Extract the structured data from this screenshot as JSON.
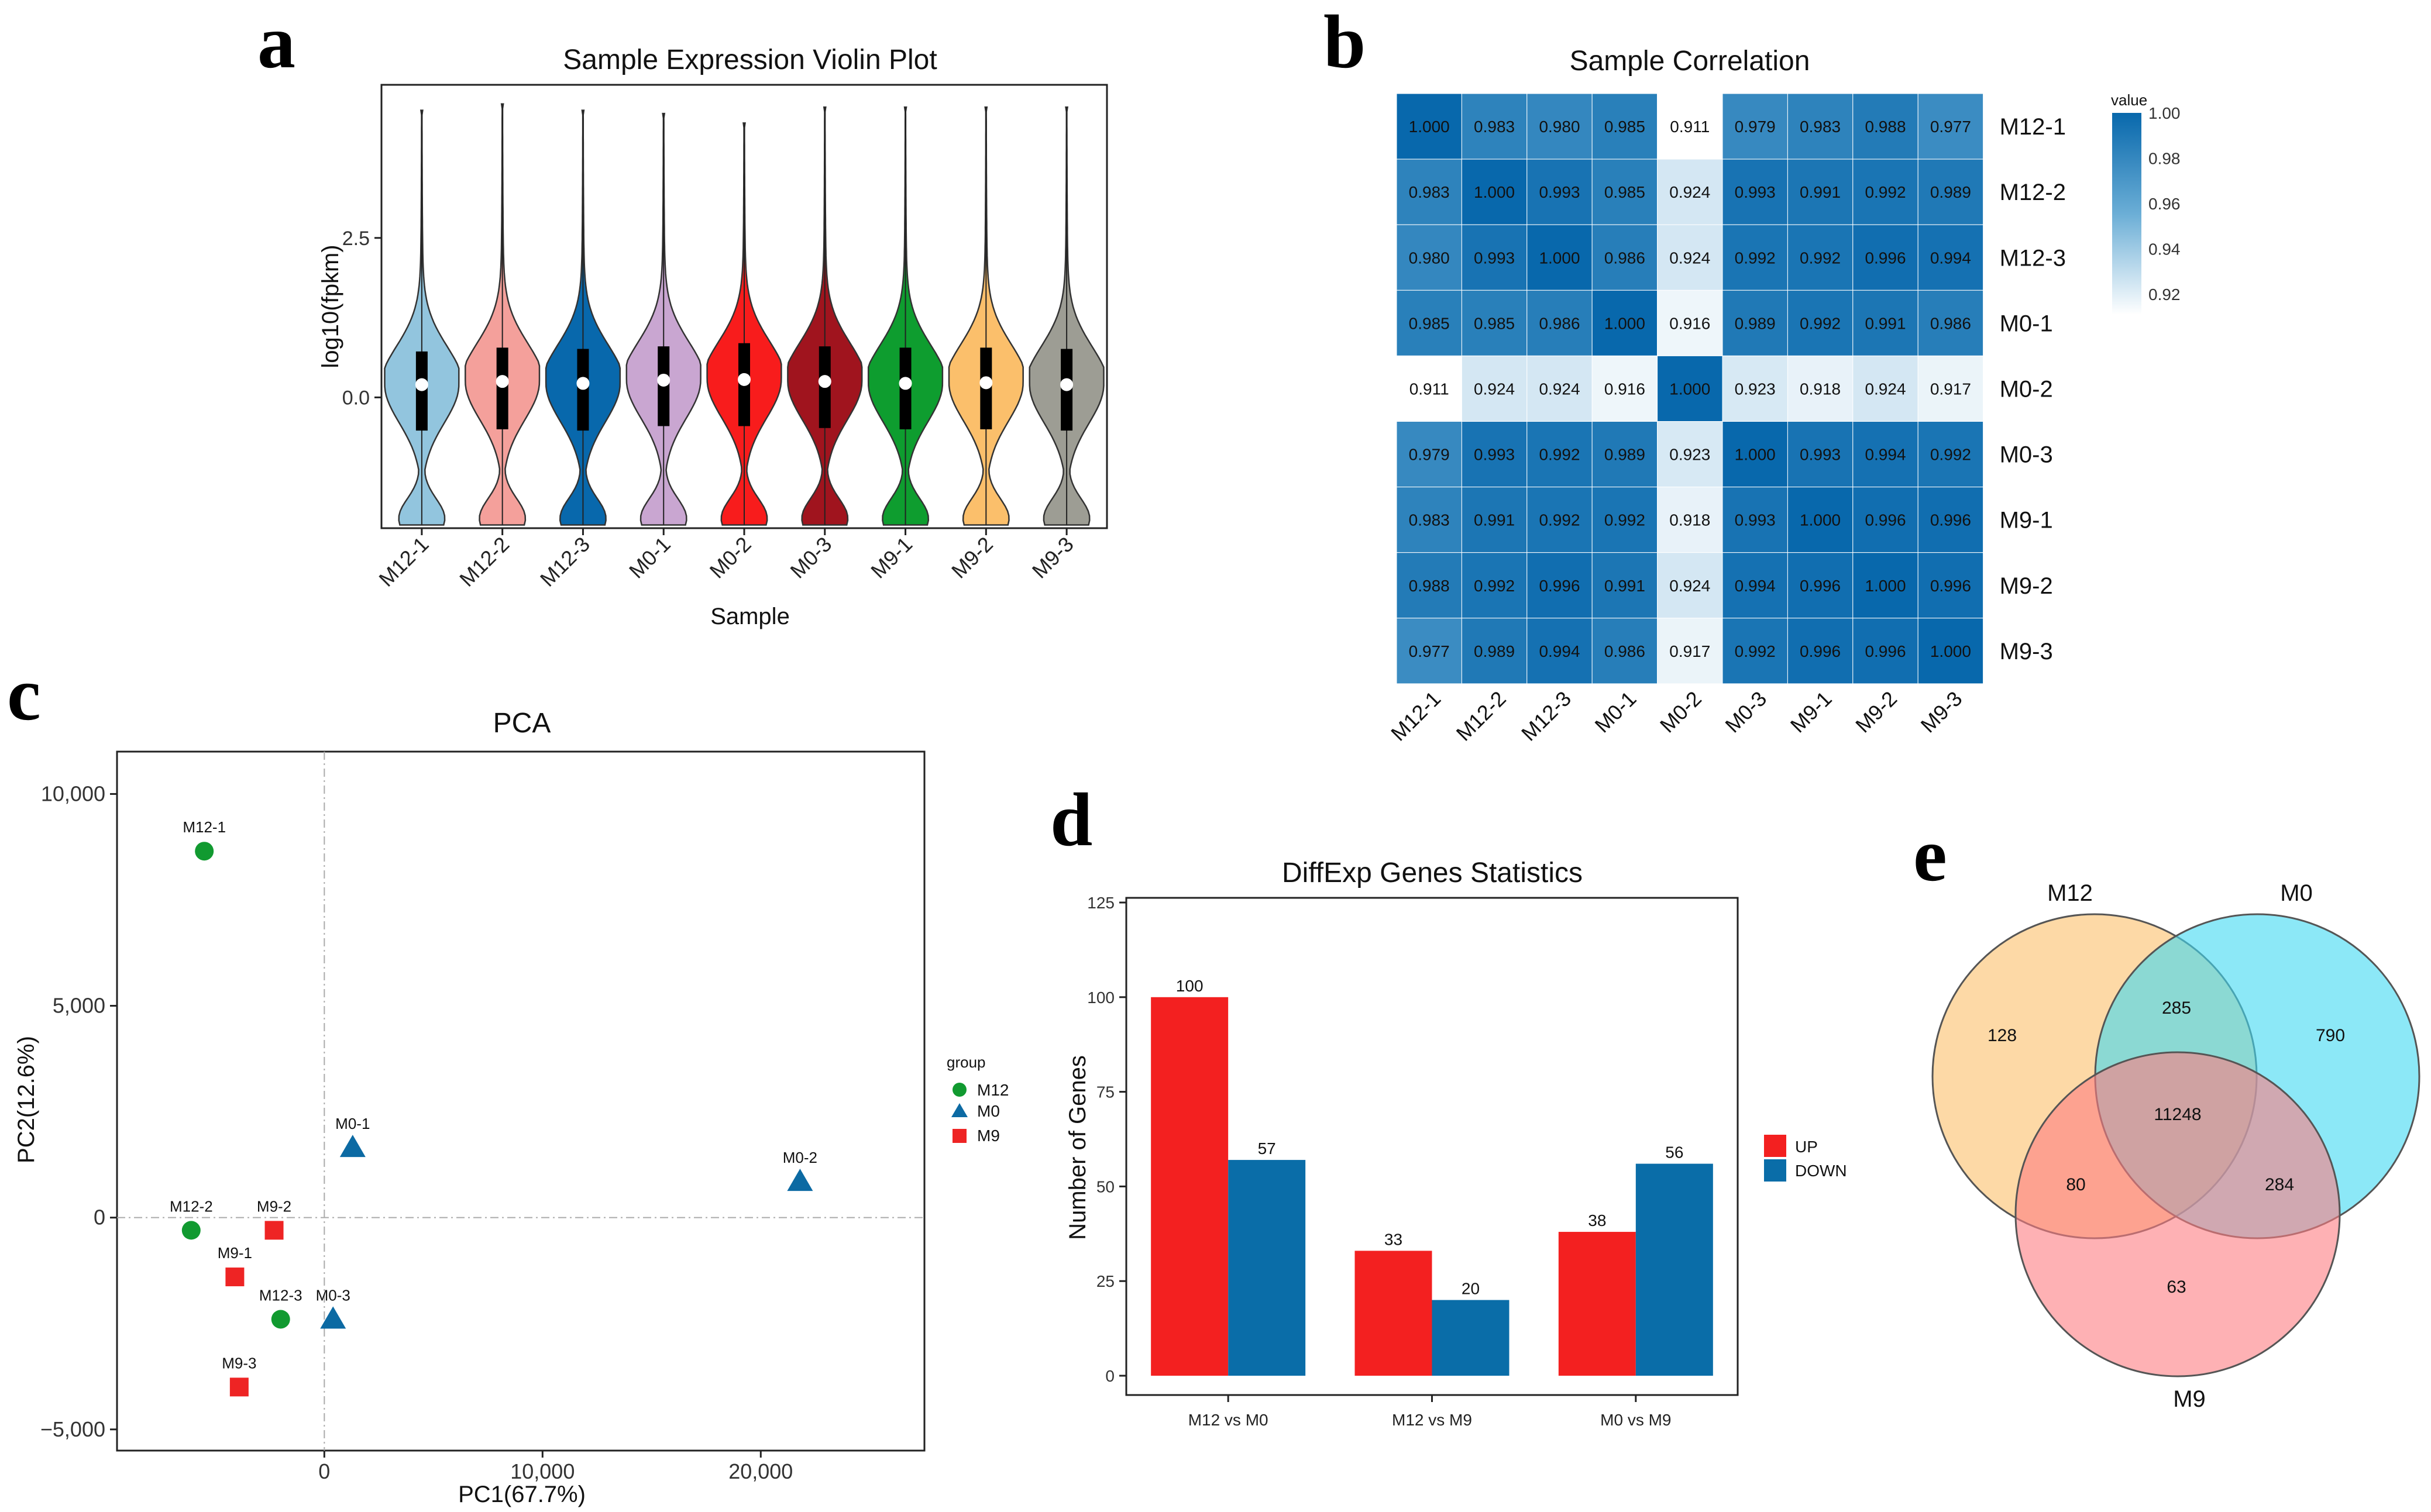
{
  "panel_labels": {
    "a": "a",
    "b": "b",
    "c": "c",
    "d": "d",
    "e": "e"
  },
  "colors": {
    "violin": [
      "#92c5de",
      "#f4a09b",
      "#0868ac",
      "#c9a6d1",
      "#f81c1c",
      "#a0141e",
      "#0e9d2f",
      "#fbbf6b",
      "#9d9d94"
    ],
    "heat_low": "#ffffff",
    "heat_high": "#0868ac",
    "pca_m12": "#119a30",
    "pca_m0": "#0c6aa3",
    "pca_m9": "#ee2424",
    "up": "#f32020",
    "down": "#0a6da8",
    "venn_m12": "#fbbf6b",
    "venn_m0": "#3fd9f2",
    "venn_m9": "#fd7d82"
  },
  "chart_data": [
    {
      "type": "violin",
      "title": "Sample Expression Violin Plot",
      "xlabel": "Sample",
      "ylabel": "log10(fpkm)",
      "categories": [
        "M12-1",
        "M12-2",
        "M12-3",
        "M0-1",
        "M0-2",
        "M0-3",
        "M9-1",
        "M9-2",
        "M9-3"
      ],
      "medians": [
        0.2,
        0.25,
        0.22,
        0.27,
        0.28,
        0.25,
        0.22,
        0.23,
        0.2
      ],
      "q1": [
        -0.52,
        -0.5,
        -0.52,
        -0.45,
        -0.45,
        -0.48,
        -0.5,
        -0.5,
        -0.52
      ],
      "q3": [
        0.72,
        0.78,
        0.76,
        0.8,
        0.85,
        0.8,
        0.78,
        0.78,
        0.76
      ],
      "max": [
        4.5,
        4.6,
        4.5,
        4.45,
        4.3,
        4.55,
        4.55,
        4.55,
        4.55
      ],
      "min": [
        -2.0,
        -2.0,
        -2.0,
        -2.0,
        -2.0,
        -2.0,
        -2.0,
        -2.0,
        -2.0
      ],
      "ylim": [
        -2.05,
        4.9
      ],
      "yticks": [
        0.0,
        2.5
      ],
      "ytick_labels": [
        "0.0",
        "2.5"
      ]
    },
    {
      "type": "heatmap",
      "title": "Sample Correlation",
      "rows": [
        "M12-1",
        "M12-2",
        "M12-3",
        "M0-1",
        "M0-2",
        "M0-3",
        "M9-1",
        "M9-2",
        "M9-3"
      ],
      "columns": [
        "M12-1",
        "M12-2",
        "M12-3",
        "M0-1",
        "M0-2",
        "M0-3",
        "M9-1",
        "M9-2",
        "M9-3"
      ],
      "values": [
        [
          "1.000",
          "0.983",
          "0.980",
          "0.985",
          "0.911",
          "0.979",
          "0.983",
          "0.988",
          "0.977"
        ],
        [
          "0.983",
          "1.000",
          "0.993",
          "0.985",
          "0.924",
          "0.993",
          "0.991",
          "0.992",
          "0.989"
        ],
        [
          "0.980",
          "0.993",
          "1.000",
          "0.986",
          "0.924",
          "0.992",
          "0.992",
          "0.996",
          "0.994"
        ],
        [
          "0.985",
          "0.985",
          "0.986",
          "1.000",
          "0.916",
          "0.989",
          "0.992",
          "0.991",
          "0.986"
        ],
        [
          "0.911",
          "0.924",
          "0.924",
          "0.916",
          "1.000",
          "0.923",
          "0.918",
          "0.924",
          "0.917"
        ],
        [
          "0.979",
          "0.993",
          "0.992",
          "0.989",
          "0.923",
          "1.000",
          "0.993",
          "0.994",
          "0.992"
        ],
        [
          "0.983",
          "0.991",
          "0.992",
          "0.992",
          "0.918",
          "0.993",
          "1.000",
          "0.996",
          "0.996"
        ],
        [
          "0.988",
          "0.992",
          "0.996",
          "0.991",
          "0.924",
          "0.994",
          "0.996",
          "1.000",
          "0.996"
        ],
        [
          "0.977",
          "0.989",
          "0.994",
          "0.986",
          "0.917",
          "0.992",
          "0.996",
          "0.996",
          "1.000"
        ]
      ],
      "legend_title": "value",
      "legend_ticks": [
        "1.00",
        "0.98",
        "0.96",
        "0.94",
        "0.92"
      ],
      "legend_range": [
        0.911,
        1.0
      ]
    },
    {
      "type": "scatter",
      "title": "PCA",
      "xlabel": "PC1(67.7%)",
      "ylabel": "PC2(12.6%)",
      "xlim": [
        -9500,
        27500
      ],
      "ylim": [
        -5500,
        11000
      ],
      "xticks": [
        0,
        10000,
        20000
      ],
      "xtick_labels": [
        "0",
        "10,000",
        "20,000"
      ],
      "yticks": [
        -5000,
        0,
        5000,
        10000
      ],
      "ytick_labels": [
        "−5,000",
        "0",
        "5,000",
        "10,000"
      ],
      "legend_title": "group",
      "groups": [
        "M12",
        "M0",
        "M9"
      ],
      "points": [
        {
          "label": "M12-1",
          "group": "M12",
          "x": -5500,
          "y": 8650
        },
        {
          "label": "M12-2",
          "group": "M12",
          "x": -6100,
          "y": -300
        },
        {
          "label": "M12-3",
          "group": "M12",
          "x": -2000,
          "y": -2400
        },
        {
          "label": "M0-1",
          "group": "M0",
          "x": 1300,
          "y": 1650
        },
        {
          "label": "M0-2",
          "group": "M0",
          "x": 21800,
          "y": 850
        },
        {
          "label": "M0-3",
          "group": "M0",
          "x": 400,
          "y": -2400
        },
        {
          "label": "M9-1",
          "group": "M9",
          "x": -4100,
          "y": -1400
        },
        {
          "label": "M9-2",
          "group": "M9",
          "x": -2300,
          "y": -300
        },
        {
          "label": "M9-3",
          "group": "M9",
          "x": -3900,
          "y": -4000
        }
      ]
    },
    {
      "type": "bar",
      "title": "DiffExp Genes Statistics",
      "xlabel": "",
      "ylabel": "Number of Genes",
      "categories": [
        "M12 vs M0",
        "M12 vs M9",
        "M0 vs M9"
      ],
      "series": [
        {
          "name": "UP",
          "values": [
            100,
            33,
            38
          ]
        },
        {
          "name": "DOWN",
          "values": [
            57,
            20,
            56
          ]
        }
      ],
      "ylim": [
        0,
        125
      ],
      "yticks": [
        0,
        25,
        50,
        75,
        100,
        125
      ],
      "ytick_labels": [
        "0",
        "25",
        "50",
        "75",
        "100",
        "125"
      ]
    },
    {
      "type": "venn",
      "sets": [
        "M12",
        "M0",
        "M9"
      ],
      "regions": {
        "M12_only": "128",
        "M0_only": "790",
        "M9_only": "63",
        "M12_M0": "285",
        "M12_M9": "80",
        "M0_M9": "284",
        "all": "11248"
      }
    }
  ]
}
